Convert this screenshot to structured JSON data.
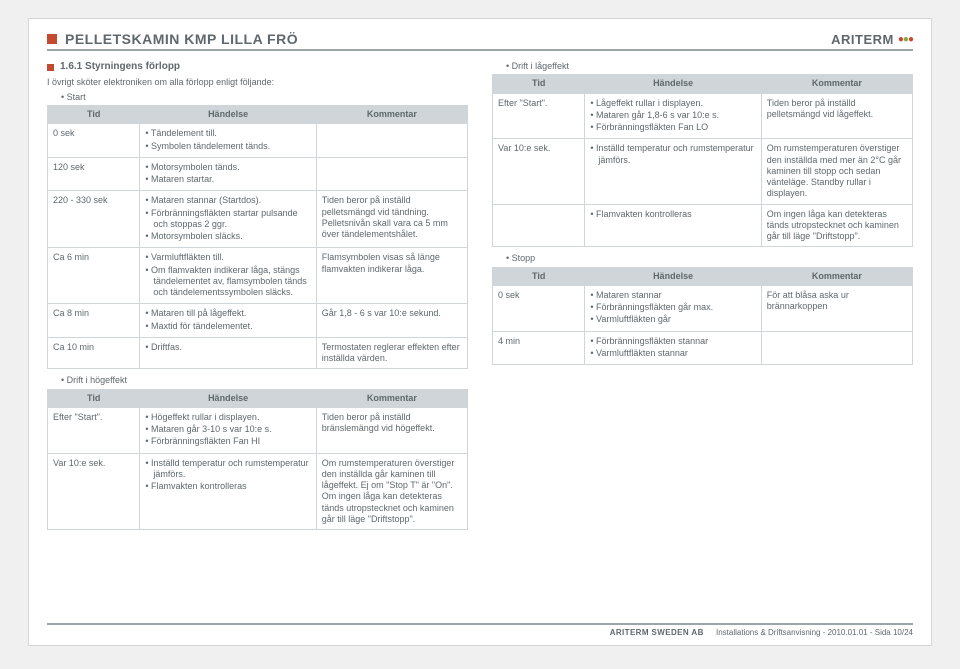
{
  "header": {
    "title": "PELLETSKAMIN KMP LILLA FRÖ",
    "brand": "ARITERM"
  },
  "section": {
    "number": "1.6.1",
    "title": "Styrningens förlopp",
    "intro": "I övrigt sköter elektroniken om alla förlopp enligt följande:"
  },
  "cols": {
    "tid": "Tid",
    "handelse": "Händelse",
    "kommentar": "Kommentar"
  },
  "left": {
    "start_label": "Start",
    "start_rows": [
      {
        "tid": "0 sek",
        "h": [
          "Tändelement till.",
          "Symbolen tändelement tänds."
        ],
        "k": ""
      },
      {
        "tid": "120 sek",
        "h": [
          "Motorsymbolen tänds.",
          "Mataren startar."
        ],
        "k": ""
      },
      {
        "tid": "220 - 330 sek",
        "h": [
          "Mataren stannar (Startdos).",
          "Förbränningsfläkten startar pulsande och stoppas 2 ggr.",
          "Motorsymbolen släcks."
        ],
        "k": "Tiden beror på inställd pelletsmängd vid tändning. Pelletsnivån skall vara ca 5 mm över tändelementshålet."
      },
      {
        "tid": "Ca 6 min",
        "h": [
          "Varmluftfläkten till.",
          "Om flamvakten indikerar låga, stängs tändelementet av, flamsymbolen tänds och tändelementssymbolen släcks."
        ],
        "k": "Flamsymbolen visas så länge flamvakten indikerar låga."
      },
      {
        "tid": "Ca 8 min",
        "h": [
          "Mataren till på lågeffekt.",
          "Maxtid för tändelementet."
        ],
        "k": "Går 1,8 - 6 s var 10:e sekund."
      },
      {
        "tid": "Ca 10 min",
        "h": [
          "Driftfas."
        ],
        "k": "Termostaten reglerar effekten efter inställda värden."
      }
    ],
    "hogeffekt_label": "Drift i högeffekt",
    "hogeffekt_rows": [
      {
        "tid": "Efter \"Start\".",
        "h": [
          "Högeffekt rullar i displayen.",
          "Mataren går 3-10 s var 10:e s.",
          "Förbränningsfläkten Fan HI"
        ],
        "k": "Tiden beror på inställd bränslemängd vid högeffekt."
      },
      {
        "tid": "Var 10:e sek.",
        "h": [
          "Inställd temperatur och rumstemperatur jämförs.",
          "Flamvakten kontrolleras"
        ],
        "k": "Om rumstemperaturen överstiger den inställda går kaminen till lågeffekt. Ej om \"Stop T\" är \"On\". Om ingen låga kan detekteras tänds utropstecknet och kaminen går till läge \"Driftstopp\"."
      }
    ]
  },
  "right": {
    "lageffekt_label": "Drift i lågeffekt",
    "lageffekt_rows": [
      {
        "tid": "Efter \"Start\".",
        "h": [
          "Lågeffekt rullar i displayen.",
          "Mataren går 1,8-6 s var 10:e s.",
          "Förbränningsfläkten Fan LO"
        ],
        "k": "Tiden beror på inställd pelletsmängd vid lågeffekt."
      },
      {
        "tid": "Var 10:e sek.",
        "h": [
          "Inställd temperatur och rumstemperatur jämförs."
        ],
        "k": "Om rumstemperaturen överstiger den inställda med mer än 2°C går kaminen till stopp och sedan vänteläge. Standby rullar i displayen."
      },
      {
        "tid": "",
        "h": [
          "Flamvakten kontrolleras"
        ],
        "k": "Om ingen låga kan detekteras tänds utropstecknet och kaminen går till läge \"Driftstopp\"."
      }
    ],
    "stopp_label": "Stopp",
    "stopp_rows": [
      {
        "tid": "0 sek",
        "h": [
          "Mataren stannar",
          "Förbränningsfläkten går max.",
          "Varmluftfläkten går"
        ],
        "k": "För att blåsa aska ur brännarkoppen"
      },
      {
        "tid": "4 min",
        "h": [
          "Förbränningsfläkten stannar",
          "Varmluftfläkten stannar"
        ],
        "k": ""
      }
    ]
  },
  "footer": {
    "brand": "ARITERM SWEDEN AB",
    "text": "Installations & Driftsanvisning - 2010.01.01 - Sida 10/24"
  }
}
